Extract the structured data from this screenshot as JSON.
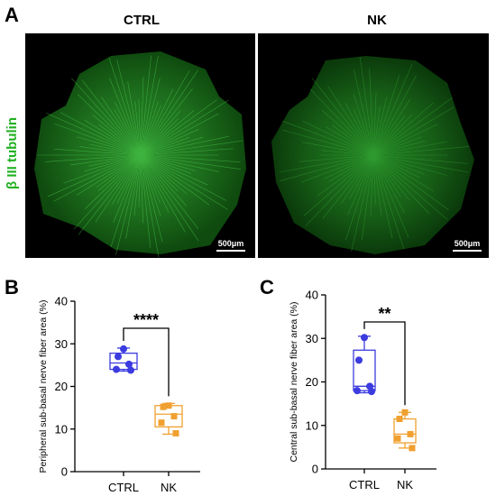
{
  "panels": {
    "a": "A",
    "b": "B",
    "c": "C"
  },
  "images": {
    "stain_label": "β III tubulin",
    "left": {
      "title": "CTRL",
      "scale_bar": "500μm"
    },
    "right": {
      "title": "NK",
      "scale_bar": "500μm"
    }
  },
  "colors": {
    "ctrl": "#3b3be0",
    "nk": "#f0a030",
    "stain": "#22b122",
    "scale": "#ffffff"
  },
  "chart_data": [
    {
      "type": "box",
      "panel": "B",
      "ylabel": "Peripheral sub-basal nerve fiber area (%)",
      "ylim": [
        0,
        40
      ],
      "yticks": [
        0,
        10,
        20,
        30,
        40
      ],
      "categories": [
        "CTRL",
        "NK"
      ],
      "significance": "****",
      "series": [
        {
          "name": "CTRL",
          "points": [
            28.8,
            27.0,
            25.2,
            24.0,
            23.8
          ],
          "box": {
            "min": 23.6,
            "q1": 24.0,
            "median": 25.5,
            "q3": 27.8,
            "max": 29.0
          }
        },
        {
          "name": "NK",
          "points": [
            15.5,
            15.2,
            13.0,
            11.5,
            9.0
          ],
          "box": {
            "min": 8.8,
            "q1": 10.5,
            "median": 13.5,
            "q3": 15.5,
            "max": 16.0
          }
        }
      ]
    },
    {
      "type": "box",
      "panel": "C",
      "ylabel": "Central sub-basal nerve fiber area (%)",
      "ylim": [
        0,
        40
      ],
      "yticks": [
        0,
        10,
        20,
        30,
        40
      ],
      "categories": [
        "CTRL",
        "NK"
      ],
      "significance": "**",
      "series": [
        {
          "name": "CTRL",
          "points": [
            30.2,
            25.0,
            19.0,
            18.0,
            17.8
          ],
          "box": {
            "min": 17.5,
            "q1": 18.0,
            "median": 19.0,
            "q3": 27.3,
            "max": 30.5
          }
        },
        {
          "name": "NK",
          "points": [
            13.0,
            11.5,
            8.0,
            7.0,
            4.8
          ],
          "box": {
            "min": 4.8,
            "q1": 6.0,
            "median": 8.0,
            "q3": 11.5,
            "max": 13.0
          }
        }
      ]
    }
  ]
}
